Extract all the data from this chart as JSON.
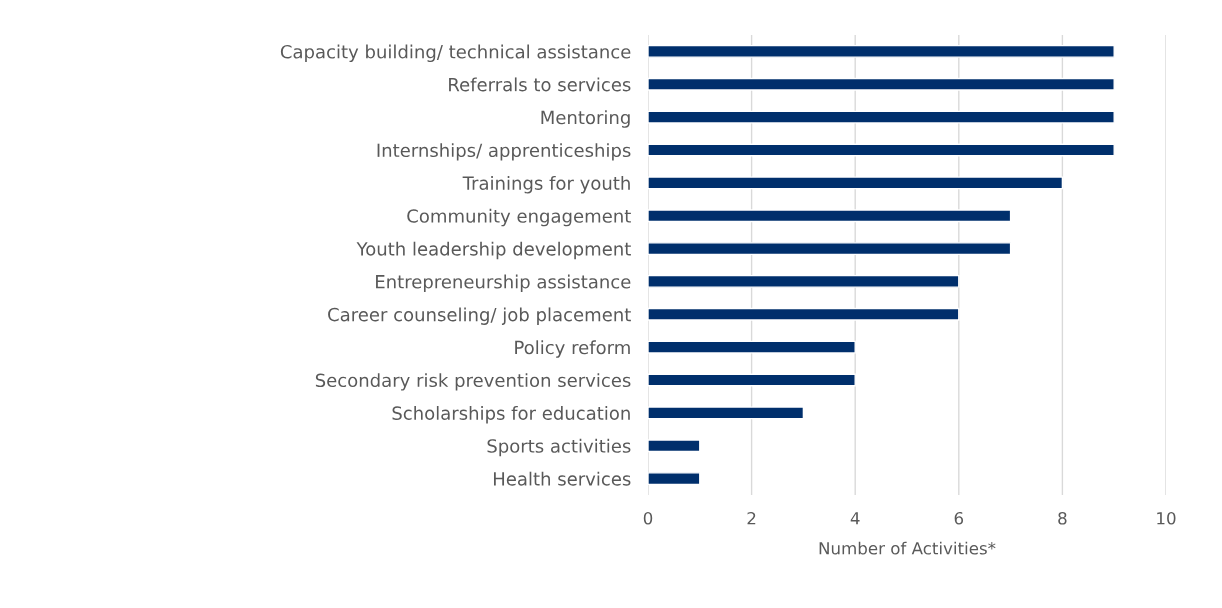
{
  "chart_data": {
    "type": "bar",
    "orientation": "horizontal",
    "xlabel": "Number of Activities*",
    "categories": [
      "Capacity building/ technical assistance",
      "Referrals to services",
      "Mentoring",
      "Internships/ apprenticeships",
      "Trainings for youth",
      "Community engagement",
      "Youth leadership development",
      "Entrepreneurship assistance",
      "Career counseling/ job placement",
      "Policy reform",
      "Secondary risk prevention services",
      "Scholarships for education",
      "Sports activities",
      "Health services"
    ],
    "values": [
      9,
      9,
      9,
      9,
      8,
      7,
      7,
      6,
      6,
      4,
      4,
      3,
      1,
      1
    ],
    "color": "#002f6c",
    "xlim": [
      0,
      10
    ],
    "xticks": [
      0,
      2,
      4,
      6,
      8,
      10
    ],
    "grid": "x",
    "legend": false
  }
}
